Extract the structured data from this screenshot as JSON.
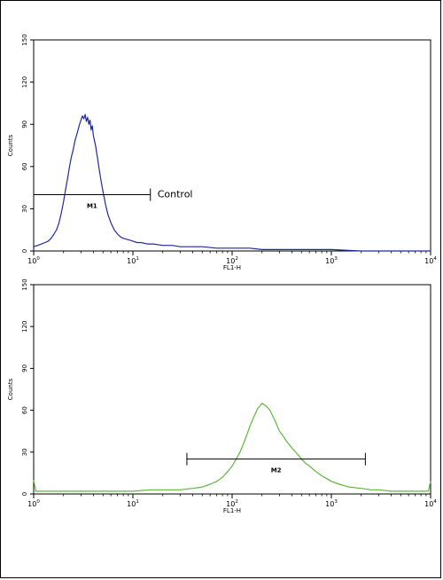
{
  "chart_data": [
    {
      "type": "line",
      "xlabel": "FL1-H",
      "ylabel": "Counts",
      "xscale": "log",
      "xlim": [
        1,
        10000
      ],
      "ylim": [
        0,
        150
      ],
      "grid": false,
      "yticks": [
        "0",
        "30",
        "60",
        "90",
        "120",
        "150"
      ],
      "xticks": [
        {
          "base": "10",
          "exp": "0"
        },
        {
          "base": "10",
          "exp": "1"
        },
        {
          "base": "10",
          "exp": "2"
        },
        {
          "base": "10",
          "exp": "3"
        },
        {
          "base": "10",
          "exp": "4"
        }
      ],
      "gate": {
        "label": "M1",
        "range": [
          1,
          15
        ],
        "y": 40
      },
      "annotation": "Control",
      "series": [
        {
          "color": "#1f2a9c",
          "x": [
            1.0,
            1.1,
            1.2,
            1.3,
            1.4,
            1.5,
            1.6,
            1.7,
            1.8,
            1.9,
            2.0,
            2.1,
            2.2,
            2.3,
            2.4,
            2.5,
            2.6,
            2.7,
            2.8,
            2.9,
            3.0,
            3.1,
            3.2,
            3.3,
            3.4,
            3.5,
            3.6,
            3.7,
            3.8,
            3.9,
            4.0,
            4.2,
            4.4,
            4.6,
            4.8,
            5.0,
            5.3,
            5.6,
            6.0,
            6.5,
            7.0,
            7.5,
            8.0,
            9.0,
            10,
            11,
            12,
            14,
            16,
            20,
            25,
            30,
            40,
            50,
            70,
            100,
            150,
            200,
            300,
            500,
            1000,
            2000,
            3000,
            5000,
            10000
          ],
          "y": [
            3,
            4,
            5,
            6,
            7,
            9,
            12,
            15,
            20,
            27,
            35,
            44,
            52,
            60,
            67,
            72,
            78,
            82,
            86,
            90,
            93,
            96,
            94,
            97,
            92,
            95,
            90,
            93,
            86,
            89,
            82,
            75,
            66,
            57,
            49,
            42,
            33,
            26,
            20,
            15,
            12,
            10,
            9,
            8,
            7,
            6,
            6,
            5,
            5,
            4,
            4,
            3,
            3,
            3,
            2,
            2,
            2,
            1,
            1,
            1,
            1,
            0,
            0,
            0,
            0
          ]
        }
      ]
    },
    {
      "type": "line",
      "xlabel": "FL1-H",
      "ylabel": "Counts",
      "xscale": "log",
      "xlim": [
        1,
        10000
      ],
      "ylim": [
        0,
        150
      ],
      "grid": false,
      "yticks": [
        "0",
        "30",
        "60",
        "90",
        "120",
        "150"
      ],
      "xticks": [
        {
          "base": "10",
          "exp": "0"
        },
        {
          "base": "10",
          "exp": "1"
        },
        {
          "base": "10",
          "exp": "2"
        },
        {
          "base": "10",
          "exp": "3"
        },
        {
          "base": "10",
          "exp": "4"
        }
      ],
      "gate": {
        "label": "M2",
        "range": [
          35,
          2200
        ],
        "y": 25
      },
      "series": [
        {
          "color": "#5cb83a",
          "x": [
            1.0,
            1.05,
            1.2,
            1.5,
            2,
            3,
            5,
            8,
            10,
            15,
            20,
            30,
            40,
            50,
            60,
            70,
            80,
            90,
            100,
            110,
            120,
            130,
            140,
            150,
            160,
            170,
            180,
            190,
            200,
            220,
            240,
            260,
            280,
            300,
            330,
            360,
            400,
            450,
            500,
            550,
            600,
            700,
            800,
            900,
            1000,
            1200,
            1500,
            2000,
            2500,
            3000,
            4000,
            5000,
            7000,
            9000,
            9500,
            10000
          ],
          "y": [
            10,
            2,
            2,
            2,
            2,
            2,
            2,
            2,
            2,
            3,
            3,
            3,
            4,
            5,
            7,
            9,
            12,
            16,
            20,
            25,
            30,
            36,
            42,
            48,
            53,
            57,
            61,
            63,
            65,
            63,
            60,
            55,
            50,
            45,
            41,
            37,
            33,
            29,
            25,
            22,
            20,
            16,
            13,
            11,
            9,
            7,
            5,
            4,
            3,
            3,
            2,
            2,
            2,
            2,
            2,
            9
          ]
        }
      ]
    }
  ]
}
